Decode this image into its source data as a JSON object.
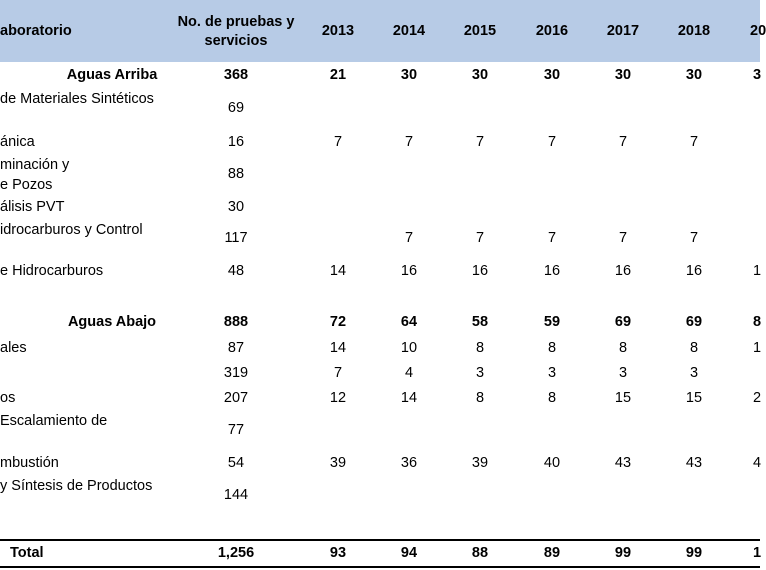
{
  "colors": {
    "header_bg": "#b7cbe6"
  },
  "header": {
    "lab": "aboratorio",
    "count_line1": "No. de pruebas y",
    "count_line2": "servicios",
    "years": [
      "2013",
      "2014",
      "2015",
      "2016",
      "2017",
      "2018",
      "20"
    ]
  },
  "rows": [
    {
      "label_lines": [
        "Aguas Arriba"
      ],
      "count": "368",
      "years": [
        "21",
        "30",
        "30",
        "30",
        "30",
        "30",
        "3"
      ],
      "bold": true,
      "center": true
    },
    {
      "label_lines": [
        "de Materiales Sintéticos"
      ],
      "count": "69",
      "years": [],
      "bold": false
    },
    {
      "label_lines": [
        "ánica"
      ],
      "count": "16",
      "years": [
        "7",
        "7",
        "7",
        "7",
        "7",
        "7"
      ],
      "bold": false
    },
    {
      "label_lines": [
        "minación y",
        "e Pozos"
      ],
      "count": "88",
      "years": [],
      "bold": false
    },
    {
      "label_lines": [
        "álisis PVT"
      ],
      "count": "30",
      "years": [],
      "bold": false
    },
    {
      "label_lines": [
        "idrocarburos  y Control"
      ],
      "count": "117",
      "years": [
        "",
        "7",
        "7",
        "7",
        "7",
        "7"
      ],
      "bold": false
    },
    {
      "label_lines": [
        "e Hidrocarburos"
      ],
      "count": "48",
      "years": [
        "14",
        "16",
        "16",
        "16",
        "16",
        "16",
        "1"
      ],
      "bold": false
    },
    {
      "label_lines": [
        "Aguas Abajo"
      ],
      "count": "888",
      "years": [
        "72",
        "64",
        "58",
        "59",
        "69",
        "69",
        "8"
      ],
      "bold": true,
      "center": true
    },
    {
      "label_lines": [
        "ales"
      ],
      "count": "87",
      "years": [
        "14",
        "10",
        "8",
        "8",
        "8",
        "8",
        "1"
      ],
      "bold": false
    },
    {
      "label_lines": [
        ""
      ],
      "count": "319",
      "years": [
        "7",
        "4",
        "3",
        "3",
        "3",
        "3"
      ],
      "bold": false
    },
    {
      "label_lines": [
        "os"
      ],
      "count": "207",
      "years": [
        "12",
        "14",
        "8",
        "8",
        "15",
        "15",
        "2"
      ],
      "bold": false
    },
    {
      "label_lines": [
        "Escalamiento de"
      ],
      "count": "77",
      "years": [],
      "bold": false
    },
    {
      "label_lines": [
        "mbustión"
      ],
      "count": "54",
      "years": [
        "39",
        "36",
        "39",
        "40",
        "43",
        "43",
        "4"
      ],
      "bold": false
    },
    {
      "label_lines": [
        "y Síntesis de Productos"
      ],
      "count": "144",
      "years": [],
      "bold": false
    }
  ],
  "total": {
    "label": "Total",
    "count": "1,256",
    "years": [
      "93",
      "94",
      "88",
      "89",
      "99",
      "99",
      "1"
    ]
  }
}
